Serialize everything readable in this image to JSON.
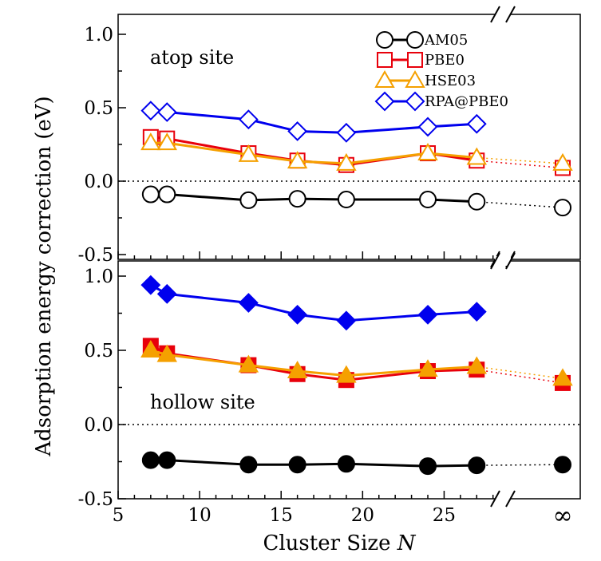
{
  "chart_data": {
    "type": "line",
    "ylabel": "Adsorption energy correction (eV)",
    "xlabel_main": "Cluster Size ",
    "xlabel_var": "N",
    "x_ticks": [
      "5",
      "10",
      "15",
      "20",
      "25"
    ],
    "x_infinity_label": "∞",
    "xlim": [
      5,
      28.7
    ],
    "ylim": [
      -0.5,
      1.05
    ],
    "y_ticks": [
      "1.0",
      "0.5",
      "0.0",
      "-0.5"
    ],
    "x": [
      7,
      8,
      13,
      16,
      19,
      24,
      27
    ],
    "legend": {
      "position": "top-right",
      "entries": [
        "AM05",
        "PBE0",
        "HSE03",
        "RPA@PBE0"
      ]
    },
    "colors": {
      "AM05": "#000000",
      "PBE0": "#e8000b",
      "HSE03": "#f5a000",
      "RPA@PBE0": "#0000ee"
    },
    "panels": [
      {
        "name": "top",
        "label": "atop site",
        "filled": false,
        "series": [
          {
            "name": "AM05",
            "values": [
              -0.09,
              -0.09,
              -0.13,
              -0.12,
              -0.125,
              -0.125,
              -0.14
            ],
            "infinity": -0.18
          },
          {
            "name": "PBE0",
            "values": [
              0.3,
              0.29,
              0.19,
              0.14,
              0.11,
              0.19,
              0.14
            ],
            "infinity": 0.09
          },
          {
            "name": "HSE03",
            "values": [
              0.26,
              0.26,
              0.18,
              0.135,
              0.12,
              0.19,
              0.16
            ],
            "infinity": 0.12
          },
          {
            "name": "RPA@PBE0",
            "values": [
              0.48,
              0.47,
              0.42,
              0.34,
              0.33,
              0.37,
              0.39
            ]
          }
        ]
      },
      {
        "name": "bottom",
        "label": "hollow site",
        "filled": true,
        "series": [
          {
            "name": "AM05",
            "values": [
              -0.24,
              -0.24,
              -0.27,
              -0.27,
              -0.265,
              -0.28,
              -0.275
            ],
            "infinity": -0.27
          },
          {
            "name": "PBE0",
            "values": [
              0.53,
              0.48,
              0.4,
              0.34,
              0.3,
              0.36,
              0.37
            ],
            "infinity": 0.28
          },
          {
            "name": "HSE03",
            "values": [
              0.5,
              0.47,
              0.4,
              0.36,
              0.33,
              0.37,
              0.39
            ],
            "infinity": 0.31
          },
          {
            "name": "RPA@PBE0",
            "values": [
              0.94,
              0.88,
              0.82,
              0.74,
              0.7,
              0.74,
              0.76
            ]
          }
        ]
      }
    ]
  }
}
